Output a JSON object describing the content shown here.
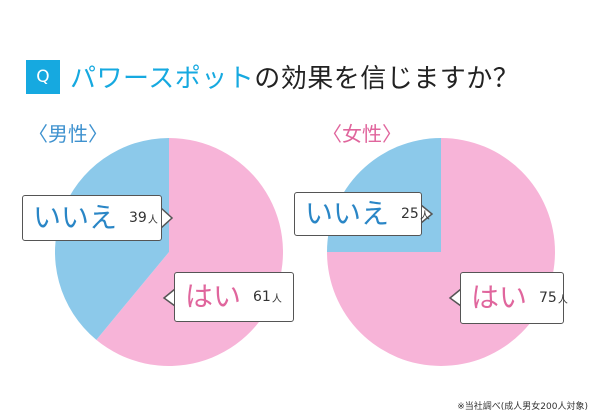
{
  "header": {
    "q_badge": "Q",
    "title_highlight": "パワースポット",
    "title_rest": "の効果を信じますか？"
  },
  "footnote": "※当社調べ(成人男女200人対象)",
  "colors": {
    "accent": "#16a9e0",
    "yes": "#f7b4d8",
    "no": "#8cc9ea",
    "yes_text": "#e0669d",
    "no_text": "#2a86c6"
  },
  "chart_data": [
    {
      "type": "pie",
      "title": "〈男性〉",
      "unit": "人",
      "slices": [
        {
          "label": "はい",
          "value": 61
        },
        {
          "label": "いいえ",
          "value": 39
        }
      ]
    },
    {
      "type": "pie",
      "title": "〈女性〉",
      "unit": "人",
      "slices": [
        {
          "label": "はい",
          "value": 75
        },
        {
          "label": "いいえ",
          "value": 25
        }
      ]
    }
  ]
}
